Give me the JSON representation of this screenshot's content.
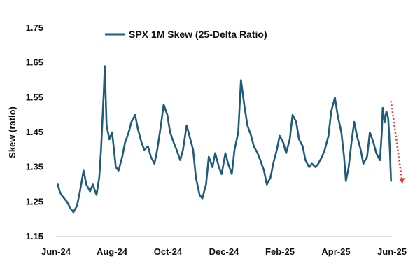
{
  "chart_data": {
    "type": "line",
    "title": "",
    "xlabel": "",
    "ylabel": "Skew (ratio)",
    "ylim": [
      1.15,
      1.75
    ],
    "yticks": [
      "1.15",
      "1.25",
      "1.35",
      "1.45",
      "1.55",
      "1.65",
      "1.75"
    ],
    "xlim": [
      "2024-06-01",
      "2025-06-01"
    ],
    "xticks": [
      "Jun-24",
      "Aug-24",
      "Oct-24",
      "Dec-24",
      "Feb-25",
      "Apr-25",
      "Jun-25"
    ],
    "grid": false,
    "legend_position": "top",
    "series": [
      {
        "name": "SPX 1M Skew (25-Delta Ratio)",
        "color": "#1f5b7a",
        "points": [
          [
            "2024-06-03",
            1.3
          ],
          [
            "2024-06-05",
            1.28
          ],
          [
            "2024-06-07",
            1.27
          ],
          [
            "2024-06-10",
            1.26
          ],
          [
            "2024-06-13",
            1.25
          ],
          [
            "2024-06-17",
            1.23
          ],
          [
            "2024-06-20",
            1.22
          ],
          [
            "2024-06-24",
            1.24
          ],
          [
            "2024-06-27",
            1.28
          ],
          [
            "2024-07-01",
            1.34
          ],
          [
            "2024-07-04",
            1.3
          ],
          [
            "2024-07-08",
            1.28
          ],
          [
            "2024-07-11",
            1.3
          ],
          [
            "2024-07-15",
            1.27
          ],
          [
            "2024-07-18",
            1.32
          ],
          [
            "2024-07-20",
            1.4
          ],
          [
            "2024-07-23",
            1.57
          ],
          [
            "2024-07-24",
            1.64
          ],
          [
            "2024-07-26",
            1.47
          ],
          [
            "2024-07-29",
            1.43
          ],
          [
            "2024-08-01",
            1.45
          ],
          [
            "2024-08-05",
            1.35
          ],
          [
            "2024-08-08",
            1.34
          ],
          [
            "2024-08-12",
            1.38
          ],
          [
            "2024-08-15",
            1.42
          ],
          [
            "2024-08-19",
            1.45
          ],
          [
            "2024-08-22",
            1.48
          ],
          [
            "2024-08-26",
            1.5
          ],
          [
            "2024-08-29",
            1.46
          ],
          [
            "2024-09-02",
            1.42
          ],
          [
            "2024-09-05",
            1.4
          ],
          [
            "2024-09-09",
            1.41
          ],
          [
            "2024-09-12",
            1.38
          ],
          [
            "2024-09-16",
            1.36
          ],
          [
            "2024-09-19",
            1.4
          ],
          [
            "2024-09-23",
            1.47
          ],
          [
            "2024-09-26",
            1.53
          ],
          [
            "2024-09-30",
            1.5
          ],
          [
            "2024-10-03",
            1.45
          ],
          [
            "2024-10-07",
            1.42
          ],
          [
            "2024-10-10",
            1.4
          ],
          [
            "2024-10-14",
            1.37
          ],
          [
            "2024-10-17",
            1.4
          ],
          [
            "2024-10-21",
            1.47
          ],
          [
            "2024-10-24",
            1.44
          ],
          [
            "2024-10-28",
            1.4
          ],
          [
            "2024-10-31",
            1.32
          ],
          [
            "2024-11-04",
            1.27
          ],
          [
            "2024-11-07",
            1.26
          ],
          [
            "2024-11-11",
            1.3
          ],
          [
            "2024-11-14",
            1.38
          ],
          [
            "2024-11-18",
            1.35
          ],
          [
            "2024-11-21",
            1.39
          ],
          [
            "2024-11-25",
            1.35
          ],
          [
            "2024-11-28",
            1.33
          ],
          [
            "2024-12-02",
            1.39
          ],
          [
            "2024-12-05",
            1.36
          ],
          [
            "2024-12-09",
            1.33
          ],
          [
            "2024-12-12",
            1.4
          ],
          [
            "2024-12-16",
            1.45
          ],
          [
            "2024-12-19",
            1.6
          ],
          [
            "2024-12-23",
            1.52
          ],
          [
            "2024-12-26",
            1.47
          ],
          [
            "2024-12-30",
            1.44
          ],
          [
            "2025-01-02",
            1.41
          ],
          [
            "2025-01-06",
            1.39
          ],
          [
            "2025-01-09",
            1.37
          ],
          [
            "2025-01-13",
            1.34
          ],
          [
            "2025-01-16",
            1.3
          ],
          [
            "2025-01-20",
            1.32
          ],
          [
            "2025-01-23",
            1.36
          ],
          [
            "2025-01-27",
            1.4
          ],
          [
            "2025-01-30",
            1.44
          ],
          [
            "2025-02-03",
            1.42
          ],
          [
            "2025-02-06",
            1.39
          ],
          [
            "2025-02-10",
            1.43
          ],
          [
            "2025-02-13",
            1.5
          ],
          [
            "2025-02-17",
            1.48
          ],
          [
            "2025-02-20",
            1.43
          ],
          [
            "2025-02-24",
            1.41
          ],
          [
            "2025-02-27",
            1.37
          ],
          [
            "2025-03-03",
            1.35
          ],
          [
            "2025-03-06",
            1.36
          ],
          [
            "2025-03-10",
            1.35
          ],
          [
            "2025-03-13",
            1.36
          ],
          [
            "2025-03-17",
            1.38
          ],
          [
            "2025-03-20",
            1.4
          ],
          [
            "2025-03-24",
            1.44
          ],
          [
            "2025-03-27",
            1.51
          ],
          [
            "2025-03-31",
            1.55
          ],
          [
            "2025-04-03",
            1.5
          ],
          [
            "2025-04-07",
            1.45
          ],
          [
            "2025-04-10",
            1.38
          ],
          [
            "2025-04-12",
            1.31
          ],
          [
            "2025-04-15",
            1.35
          ],
          [
            "2025-04-18",
            1.42
          ],
          [
            "2025-04-21",
            1.48
          ],
          [
            "2025-04-24",
            1.44
          ],
          [
            "2025-04-28",
            1.4
          ],
          [
            "2025-05-01",
            1.36
          ],
          [
            "2025-05-05",
            1.38
          ],
          [
            "2025-05-08",
            1.45
          ],
          [
            "2025-05-12",
            1.42
          ],
          [
            "2025-05-15",
            1.39
          ],
          [
            "2025-05-19",
            1.37
          ],
          [
            "2025-05-21",
            1.45
          ],
          [
            "2025-05-22",
            1.52
          ],
          [
            "2025-05-24",
            1.48
          ],
          [
            "2025-05-26",
            1.51
          ],
          [
            "2025-05-28",
            1.49
          ],
          [
            "2025-05-29",
            1.44
          ],
          [
            "2025-05-30",
            1.38
          ],
          [
            "2025-05-31",
            1.31
          ]
        ]
      }
    ],
    "annotations": [
      {
        "type": "dotted-arrow",
        "color": "#e53935",
        "from": [
          "2025-05-31",
          1.54
        ],
        "to": [
          "2025-06-12",
          1.31
        ]
      }
    ]
  }
}
